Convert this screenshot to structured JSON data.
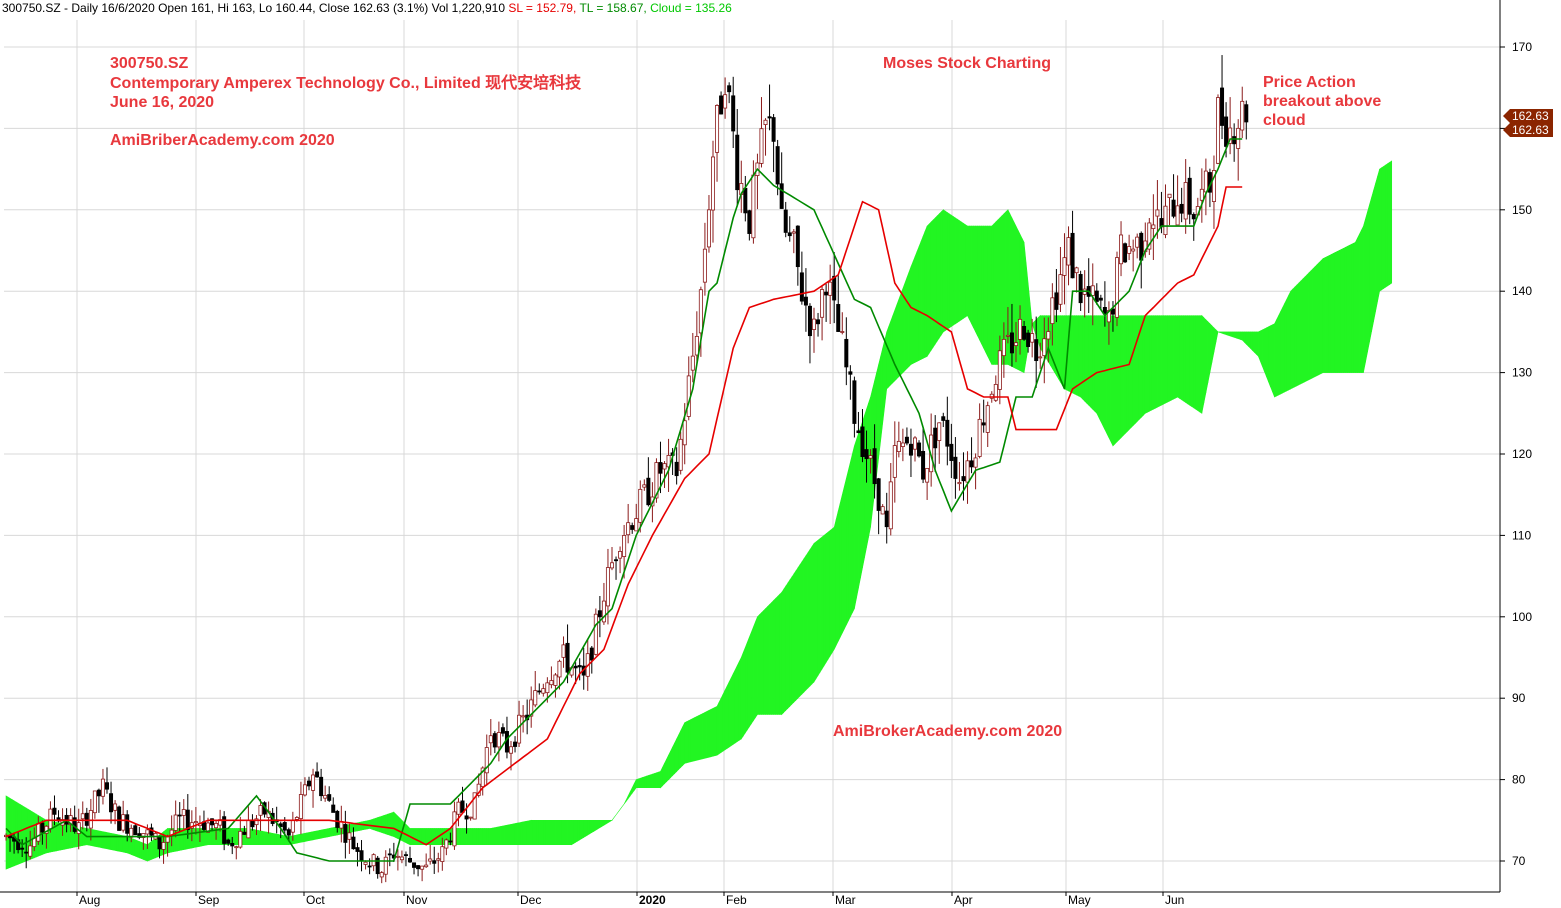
{
  "header": {
    "prefix": "300750.SZ - Daily 16/6/2020 Open 161, Hi 163, Lo 160.44, Close 162.63 (3.1%) Vol 1,220,910",
    "sl": "SL = 152.79,",
    "tl": "TL = 158.67,",
    "cloud": "Cloud = 135.26"
  },
  "annotations": {
    "ticker": "300750.SZ",
    "company": "Contemporary Amperex Technology Co., Limited 现代安培科技",
    "date": "June 16, 2020",
    "site_top": "AmiBriberAcademy.com  2020",
    "brand": "Moses Stock Charting",
    "note_line1": "Price Action",
    "note_line2": "breakout above",
    "note_line3": "cloud",
    "site_bottom": "AmiBrokerAcademy.com  2020"
  },
  "chart_data": {
    "type": "candlestick",
    "ylim": [
      67,
      174
    ],
    "yticks": [
      70,
      80,
      90,
      100,
      110,
      120,
      130,
      140,
      150,
      160,
      170
    ],
    "xticks": [
      {
        "label": "Aug",
        "bold": false
      },
      {
        "label": "Sep",
        "bold": false
      },
      {
        "label": "Oct",
        "bold": false
      },
      {
        "label": "Nov",
        "bold": false
      },
      {
        "label": "Dec",
        "bold": false
      },
      {
        "label": "2020",
        "bold": true
      },
      {
        "label": "Feb",
        "bold": false
      },
      {
        "label": "Mar",
        "bold": false
      },
      {
        "label": "Apr",
        "bold": false
      },
      {
        "label": "May",
        "bold": false
      },
      {
        "label": "Jun",
        "bold": false
      }
    ],
    "last_price_labels": [
      "162.63",
      "162.63"
    ],
    "colors": {
      "up": "#8b1a1a",
      "down": "#000000",
      "tl": "#008a00",
      "sl": "#e60000",
      "cloud_bull": "#22f522",
      "cloud_bear": "#ff6a21",
      "price_tag": "#8b2500"
    },
    "price_path": [
      [
        0,
        73
      ],
      [
        6,
        72
      ],
      [
        12,
        76
      ],
      [
        18,
        74
      ],
      [
        24,
        79
      ],
      [
        28,
        75
      ],
      [
        33,
        74
      ],
      [
        38,
        72
      ],
      [
        43,
        75
      ],
      [
        48,
        75
      ],
      [
        53,
        74
      ],
      [
        55,
        72
      ],
      [
        59,
        74
      ],
      [
        64,
        76
      ],
      [
        70,
        73
      ],
      [
        76,
        81
      ],
      [
        78,
        79
      ],
      [
        81,
        76
      ],
      [
        86,
        72
      ],
      [
        90,
        70
      ],
      [
        93,
        69
      ],
      [
        96,
        71
      ],
      [
        100,
        70
      ],
      [
        104,
        69
      ],
      [
        108,
        71
      ],
      [
        112,
        76
      ],
      [
        116,
        77
      ],
      [
        120,
        86
      ],
      [
        124,
        84
      ],
      [
        129,
        88
      ],
      [
        134,
        93
      ],
      [
        138,
        95
      ],
      [
        143,
        92
      ],
      [
        148,
        103
      ],
      [
        152,
        110
      ],
      [
        156,
        113
      ],
      [
        162,
        118
      ],
      [
        166,
        118
      ],
      [
        170,
        132
      ],
      [
        172,
        140
      ],
      [
        175,
        157
      ],
      [
        178,
        167
      ],
      [
        181,
        155
      ],
      [
        184,
        149
      ],
      [
        188,
        160
      ],
      [
        190,
        160
      ],
      [
        192,
        148
      ],
      [
        195,
        145
      ],
      [
        197,
        140
      ],
      [
        200,
        135
      ],
      [
        203,
        142
      ],
      [
        205,
        137
      ],
      [
        207,
        133
      ],
      [
        210,
        125
      ],
      [
        213,
        120
      ],
      [
        216,
        115
      ],
      [
        218,
        110
      ],
      [
        220,
        120
      ],
      [
        224,
        122
      ],
      [
        227,
        118
      ],
      [
        231,
        124
      ],
      [
        233,
        122
      ],
      [
        236,
        117
      ],
      [
        239,
        120
      ],
      [
        242,
        125
      ],
      [
        245,
        130
      ],
      [
        248,
        133
      ],
      [
        252,
        136
      ],
      [
        255,
        133
      ],
      [
        258,
        137
      ],
      [
        263,
        145
      ],
      [
        266,
        140
      ],
      [
        270,
        138
      ],
      [
        273,
        136
      ],
      [
        276,
        145
      ],
      [
        281,
        146
      ],
      [
        283,
        150
      ],
      [
        286,
        148
      ],
      [
        290,
        152
      ],
      [
        294,
        150
      ],
      [
        298,
        153
      ],
      [
        300,
        162
      ],
      [
        303,
        160
      ],
      [
        306,
        162
      ],
      [
        307,
        162.6
      ]
    ],
    "tl_path": [
      [
        0,
        74
      ],
      [
        4,
        72
      ],
      [
        15,
        75
      ],
      [
        20,
        73
      ],
      [
        40,
        73
      ],
      [
        55,
        74
      ],
      [
        62,
        78
      ],
      [
        68,
        74
      ],
      [
        72,
        71
      ],
      [
        80,
        70
      ],
      [
        96,
        70
      ],
      [
        100,
        77
      ],
      [
        110,
        77
      ],
      [
        120,
        82
      ],
      [
        124,
        85
      ],
      [
        130,
        88
      ],
      [
        138,
        92
      ],
      [
        146,
        99
      ],
      [
        150,
        101
      ],
      [
        156,
        110
      ],
      [
        160,
        114
      ],
      [
        164,
        118
      ],
      [
        170,
        128
      ],
      [
        174,
        140
      ],
      [
        176,
        141
      ],
      [
        180,
        149
      ],
      [
        182,
        152
      ],
      [
        186,
        155
      ],
      [
        190,
        153
      ],
      [
        200,
        150
      ],
      [
        210,
        139
      ],
      [
        214,
        138
      ],
      [
        220,
        131
      ],
      [
        226,
        125
      ],
      [
        230,
        118
      ],
      [
        234,
        113
      ],
      [
        240,
        118
      ],
      [
        246,
        119
      ],
      [
        250,
        127
      ],
      [
        254,
        127
      ],
      [
        258,
        133
      ],
      [
        262,
        128
      ],
      [
        264,
        140
      ],
      [
        268,
        140
      ],
      [
        272,
        137
      ],
      [
        278,
        140
      ],
      [
        282,
        145
      ],
      [
        286,
        148
      ],
      [
        290,
        148
      ],
      [
        294,
        148
      ],
      [
        297,
        152
      ],
      [
        300,
        155
      ],
      [
        303,
        158.7
      ],
      [
        306,
        158.7
      ]
    ],
    "sl_path": [
      [
        0,
        73
      ],
      [
        10,
        75
      ],
      [
        20,
        75
      ],
      [
        30,
        75
      ],
      [
        40,
        73
      ],
      [
        50,
        75
      ],
      [
        60,
        75
      ],
      [
        70,
        75
      ],
      [
        80,
        75
      ],
      [
        96,
        74
      ],
      [
        104,
        72
      ],
      [
        110,
        74
      ],
      [
        118,
        79
      ],
      [
        126,
        82
      ],
      [
        134,
        85
      ],
      [
        142,
        93
      ],
      [
        148,
        96
      ],
      [
        154,
        104
      ],
      [
        160,
        110
      ],
      [
        168,
        117
      ],
      [
        174,
        120
      ],
      [
        180,
        133
      ],
      [
        184,
        138
      ],
      [
        190,
        139
      ],
      [
        200,
        140
      ],
      [
        206,
        142
      ],
      [
        212,
        151
      ],
      [
        216,
        150
      ],
      [
        220,
        141
      ],
      [
        224,
        138
      ],
      [
        228,
        137
      ],
      [
        234,
        135
      ],
      [
        238,
        128
      ],
      [
        242,
        127
      ],
      [
        248,
        127
      ],
      [
        250,
        123
      ],
      [
        260,
        123
      ],
      [
        264,
        128
      ],
      [
        270,
        130
      ],
      [
        278,
        131
      ],
      [
        282,
        137
      ],
      [
        290,
        141
      ],
      [
        294,
        142
      ],
      [
        300,
        148
      ],
      [
        302,
        152.8
      ],
      [
        306,
        152.8
      ]
    ],
    "cloud": [
      [
        0,
        78,
        69
      ],
      [
        10,
        75,
        71
      ],
      [
        20,
        74,
        72
      ],
      [
        30,
        73,
        71
      ],
      [
        35,
        72,
        70
      ],
      [
        40,
        74,
        71
      ],
      [
        50,
        74,
        72
      ],
      [
        60,
        74,
        72
      ],
      [
        70,
        73,
        72
      ],
      [
        80,
        74,
        73
      ],
      [
        90,
        75,
        74
      ],
      [
        96,
        76,
        73
      ],
      [
        100,
        74,
        72
      ],
      [
        110,
        74,
        72
      ],
      [
        120,
        74,
        72
      ],
      [
        130,
        75,
        72
      ],
      [
        140,
        75,
        72
      ],
      [
        150,
        75,
        75
      ],
      [
        153,
        77,
        77
      ],
      [
        156,
        80,
        79
      ],
      [
        162,
        81,
        79
      ],
      [
        168,
        87,
        82
      ],
      [
        176,
        89,
        83
      ],
      [
        182,
        95,
        85
      ],
      [
        186,
        100,
        88
      ],
      [
        192,
        103,
        88
      ],
      [
        200,
        109,
        92
      ],
      [
        205,
        111,
        96
      ],
      [
        210,
        121,
        101
      ],
      [
        214,
        127,
        111
      ],
      [
        218,
        135,
        128
      ],
      [
        224,
        143,
        131
      ],
      [
        228,
        148,
        132
      ],
      [
        232,
        150,
        135
      ],
      [
        238,
        148,
        137
      ],
      [
        244,
        148,
        131
      ],
      [
        248,
        150,
        131
      ],
      [
        252,
        146,
        130
      ],
      [
        254,
        136,
        136
      ],
      [
        256,
        137,
        133
      ],
      [
        262,
        137,
        128
      ],
      [
        266,
        137,
        127
      ],
      [
        270,
        137,
        125
      ],
      [
        274,
        137,
        121
      ],
      [
        278,
        137,
        123
      ],
      [
        282,
        137,
        125
      ],
      [
        290,
        137,
        127
      ],
      [
        296,
        137,
        125
      ],
      [
        300,
        135,
        135
      ],
      [
        306,
        135,
        134
      ],
      [
        310,
        135,
        132
      ],
      [
        314,
        136,
        127
      ],
      [
        318,
        140,
        128
      ],
      [
        326,
        144,
        130
      ],
      [
        334,
        146,
        130
      ],
      [
        336,
        148,
        130
      ],
      [
        340,
        155,
        140
      ],
      [
        343,
        156,
        141
      ]
    ],
    "x_domain": [
      0,
      372
    ]
  }
}
